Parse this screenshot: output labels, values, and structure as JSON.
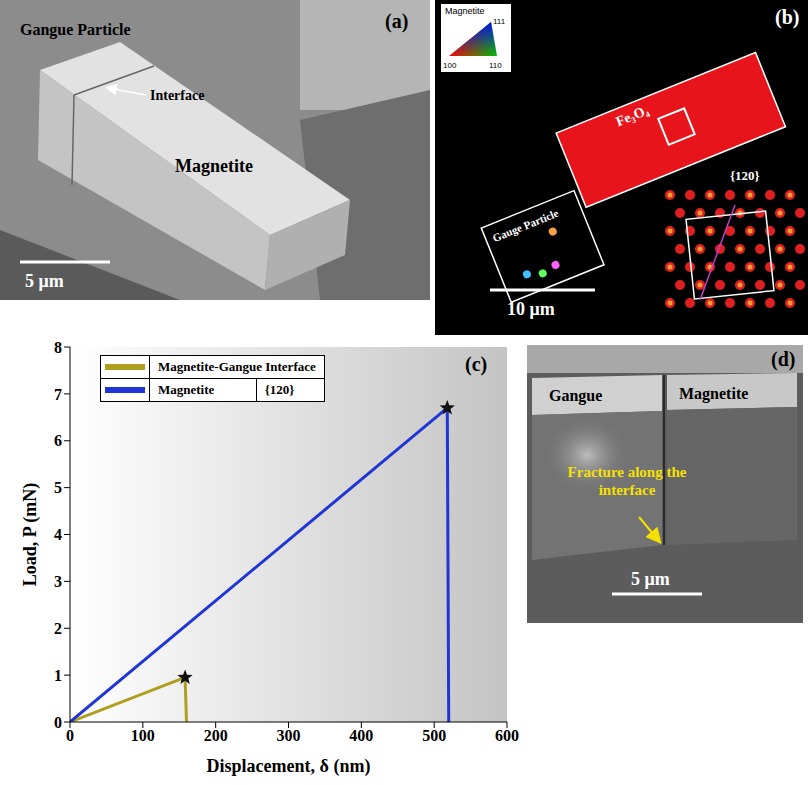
{
  "panels": {
    "a": {
      "letter": "(a)",
      "labels": {
        "gangue": "Gangue Particle",
        "interface": "Interface",
        "magnetite": "Magnetite"
      },
      "scale_bar": "5 μm"
    },
    "b": {
      "letter": "(b)",
      "key_title": "Magnetite",
      "key_corners": [
        "111",
        "100",
        "110"
      ],
      "labels": {
        "gangue": "Gauge Particle",
        "magnetite": "Fe₃O₄"
      },
      "plane": "{120}",
      "scale_bar": "10 μm"
    },
    "d": {
      "letter": "(d)",
      "labels": {
        "gangue": "Gangue",
        "magnetite": "Magnetite"
      },
      "annotation": "Fracture along the interface",
      "scale_bar": "5 μm"
    }
  },
  "chart_data": {
    "type": "line",
    "title": "(c)",
    "x_label": "Displacement, δ (nm)",
    "y_label": "Load, P (mN)",
    "xlim": [
      0,
      600
    ],
    "xticks": [
      0,
      100,
      200,
      300,
      400,
      500,
      600
    ],
    "ylim": [
      0,
      8
    ],
    "yticks": [
      0,
      1,
      2,
      3,
      4,
      5,
      6,
      7,
      8
    ],
    "grid": false,
    "legend": "upper left",
    "marker": "star",
    "series": [
      {
        "name": "Magnetite-Gangue Interface",
        "color": "#b09f1f",
        "x": [
          0,
          158,
          160
        ],
        "values": [
          0,
          0.95,
          0
        ]
      },
      {
        "name": "Magnetite",
        "plane": "{120}",
        "color": "#1f35d6",
        "x": [
          0,
          518,
          520
        ],
        "values": [
          0,
          6.7,
          0
        ]
      }
    ]
  }
}
